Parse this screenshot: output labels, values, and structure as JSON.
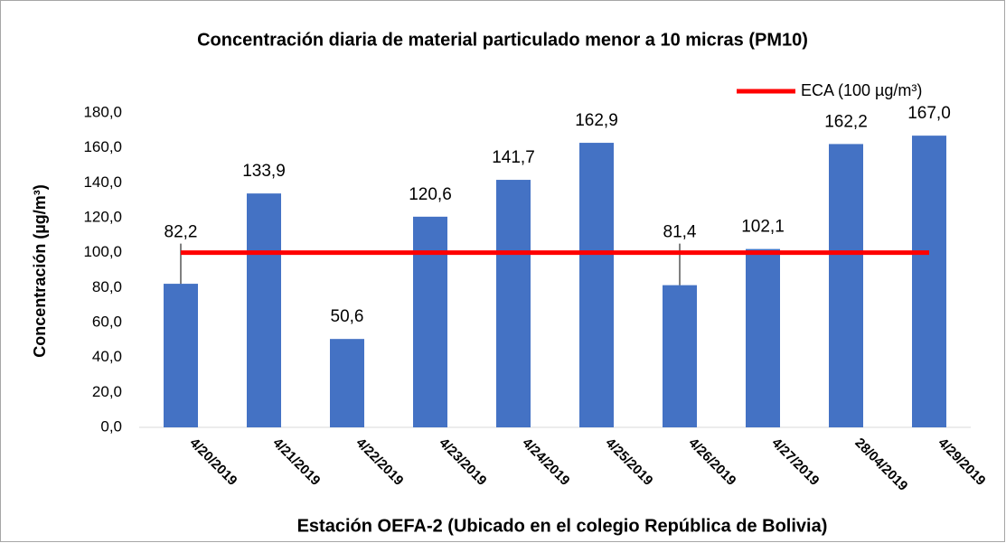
{
  "chart_data": {
    "type": "bar",
    "title": "Concentración diaria de material particulado menor a 10 micras (PM10)",
    "x_label": "Estación OEFA-2 (Ubicado en el colegio República de Bolivia)",
    "y_label": "Concentración (µg/m³)",
    "categories": [
      "4/20/2019",
      "4/21/2019",
      "4/22/2019",
      "4/23/2019",
      "4/24/2019",
      "4/25/2019",
      "4/26/2019",
      "4/27/2019",
      "28/04/2019",
      "4/29/2019"
    ],
    "series": [
      {
        "type": "bar",
        "color": "#4472c4",
        "values": [
          82.2,
          133.9,
          50.6,
          120.6,
          141.7,
          162.9,
          81.4,
          102.1,
          162.2,
          167.0
        ],
        "value_labels": [
          "82,2",
          "133,9",
          "50,6",
          "120,6",
          "141,7",
          "162,9",
          "81,4",
          "102,1",
          "162,2",
          "167,0"
        ]
      },
      {
        "type": "line",
        "name": "ECA (100 µg/m³)",
        "color": "#ff0000",
        "values": [
          100,
          100,
          100,
          100,
          100,
          100,
          100,
          100,
          100,
          100
        ]
      }
    ],
    "ylim": [
      0,
      180
    ],
    "yticks": [
      {
        "value": 0,
        "label": "0,0"
      },
      {
        "value": 20,
        "label": "20,0"
      },
      {
        "value": 40,
        "label": "40,0"
      },
      {
        "value": 60,
        "label": "60,0"
      },
      {
        "value": 80,
        "label": "80,0"
      },
      {
        "value": 100,
        "label": "100,0"
      },
      {
        "value": 120,
        "label": "120,0"
      },
      {
        "value": 140,
        "label": "140,0"
      },
      {
        "value": 160,
        "label": "160,0"
      },
      {
        "value": 180,
        "label": "180,0"
      }
    ],
    "grid": false,
    "legend": "top-right"
  }
}
